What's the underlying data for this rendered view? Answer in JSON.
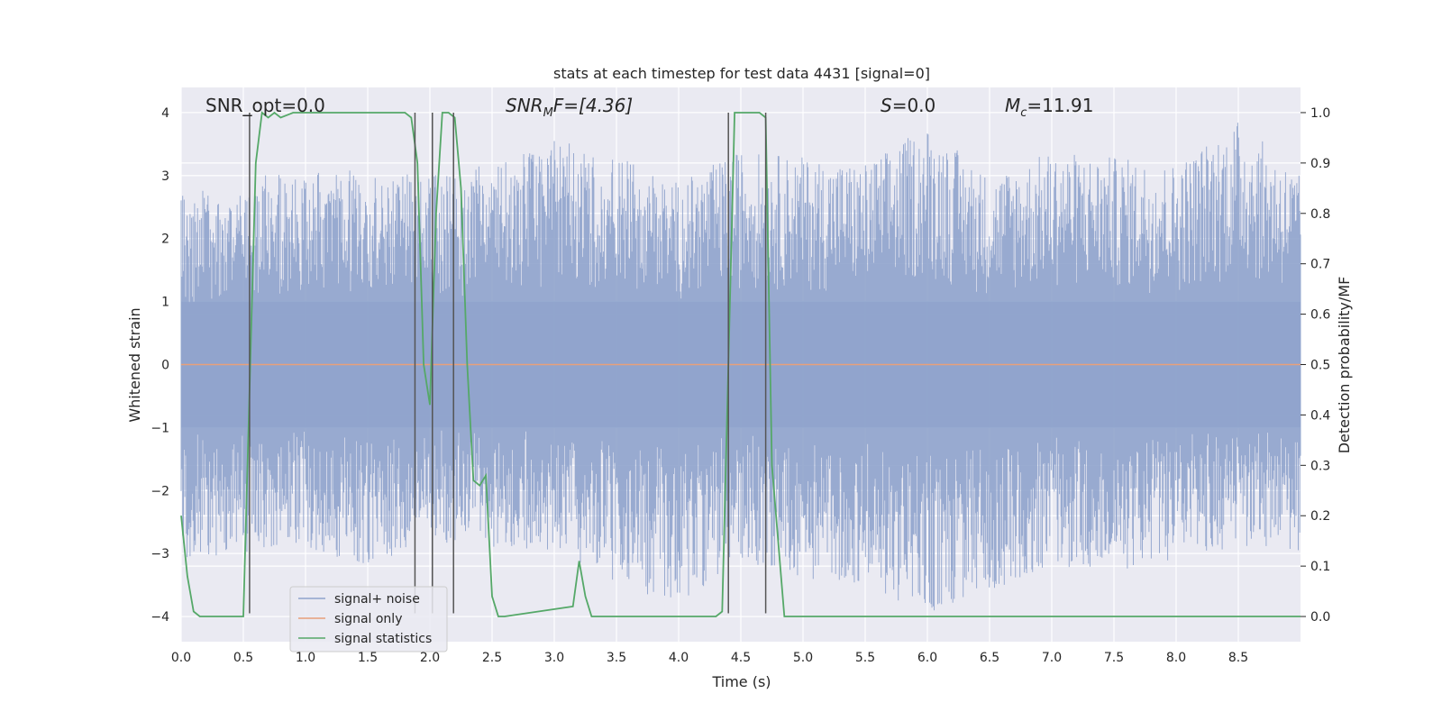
{
  "chart_data": {
    "type": "line",
    "title": "stats at each timestep for test data 4431 [signal=0]",
    "xlabel": "Time (s)",
    "ylabel_left": "Whitened strain",
    "ylabel_right": "Detection probability/MF",
    "xlim": [
      0,
      9.0
    ],
    "ylim_left": [
      -4.4,
      4.4
    ],
    "ylim_right": [
      -0.05,
      1.05
    ],
    "x_ticks": [
      "0.0",
      "0.5",
      "1.0",
      "1.5",
      "2.0",
      "2.5",
      "3.0",
      "3.5",
      "4.0",
      "4.5",
      "5.0",
      "5.5",
      "6.0",
      "6.5",
      "7.0",
      "7.5",
      "8.0",
      "8.5"
    ],
    "y_ticks_left": [
      "4",
      "3",
      "2",
      "1",
      "0",
      "−1",
      "−2",
      "−3",
      "−4"
    ],
    "y_ticks_right": [
      "1.0",
      "0.9",
      "0.8",
      "0.7",
      "0.6",
      "0.5",
      "0.4",
      "0.3",
      "0.2",
      "0.1",
      "0.0"
    ],
    "grid": true,
    "annotations": {
      "snr_opt": "SNR_opt=0.0",
      "snr_mf_main": "SNR",
      "snr_mf_sub": "M",
      "snr_mf_rest": "F=[4.36]",
      "s_main": "S",
      "s_rest": "=0.0",
      "mc_main": "M",
      "mc_sub": "c",
      "mc_rest": "=11.91"
    },
    "series": [
      {
        "name": "signal+ noise",
        "color": "#8FA3CC",
        "kind": "noise",
        "envelope": {
          "x": [
            0.0,
            0.5,
            1.0,
            1.5,
            2.0,
            2.5,
            3.0,
            3.5,
            4.0,
            4.5,
            5.0,
            5.5,
            6.0,
            6.5,
            7.0,
            7.5,
            8.0,
            8.5,
            9.0
          ],
          "upper": [
            2.7,
            2.9,
            3.2,
            3.1,
            3.0,
            3.2,
            3.6,
            3.3,
            2.9,
            3.4,
            3.3,
            3.2,
            3.8,
            3.0,
            3.4,
            3.3,
            3.2,
            3.9,
            3.0
          ],
          "lower": [
            -3.1,
            -3.0,
            -2.9,
            -3.2,
            -2.8,
            -2.9,
            -3.0,
            -3.5,
            -3.8,
            -3.1,
            -3.4,
            -3.5,
            -4.0,
            -3.6,
            -3.2,
            -3.3,
            -3.1,
            -2.9,
            -3.0
          ]
        }
      },
      {
        "name": "signal only",
        "color": "#E8A07A",
        "kind": "flat",
        "x": [
          0.0,
          9.0
        ],
        "y": [
          0.0,
          0.0
        ]
      },
      {
        "name": "signal statistics",
        "color": "#55A868",
        "axis": "right",
        "x": [
          0.0,
          0.05,
          0.1,
          0.15,
          0.5,
          0.55,
          0.6,
          0.65,
          0.7,
          0.75,
          0.8,
          0.85,
          0.9,
          1.0,
          1.5,
          1.8,
          1.85,
          1.9,
          1.95,
          2.0,
          2.05,
          2.1,
          2.15,
          2.2,
          2.25,
          2.3,
          2.35,
          2.4,
          2.45,
          2.5,
          2.55,
          2.6,
          3.15,
          3.2,
          3.25,
          3.3,
          3.35,
          3.4,
          4.3,
          4.35,
          4.4,
          4.45,
          4.5,
          4.6,
          4.65,
          4.7,
          4.75,
          4.8,
          4.85,
          9.0
        ],
        "y": [
          0.2,
          0.08,
          0.01,
          0.0,
          0.0,
          0.45,
          0.9,
          1.0,
          0.99,
          1.0,
          0.99,
          0.995,
          1.0,
          1.0,
          1.0,
          1.0,
          0.99,
          0.9,
          0.5,
          0.42,
          0.8,
          1.0,
          1.0,
          0.99,
          0.85,
          0.5,
          0.27,
          0.26,
          0.28,
          0.04,
          0.0,
          0.0,
          0.02,
          0.11,
          0.04,
          0.0,
          0.0,
          0.0,
          0.0,
          0.01,
          0.5,
          1.0,
          1.0,
          1.0,
          1.0,
          0.99,
          0.3,
          0.15,
          0.0,
          0.0
        ]
      }
    ],
    "vlines": {
      "color": "#555555",
      "x": [
        0.55,
        1.88,
        2.02,
        2.19,
        4.4,
        4.7
      ],
      "y_from": -3.95,
      "y_to": 4.0
    },
    "legend": {
      "placement": "lower-left",
      "entries": [
        "signal+ noise",
        "signal only",
        "signal statistics"
      ]
    }
  }
}
